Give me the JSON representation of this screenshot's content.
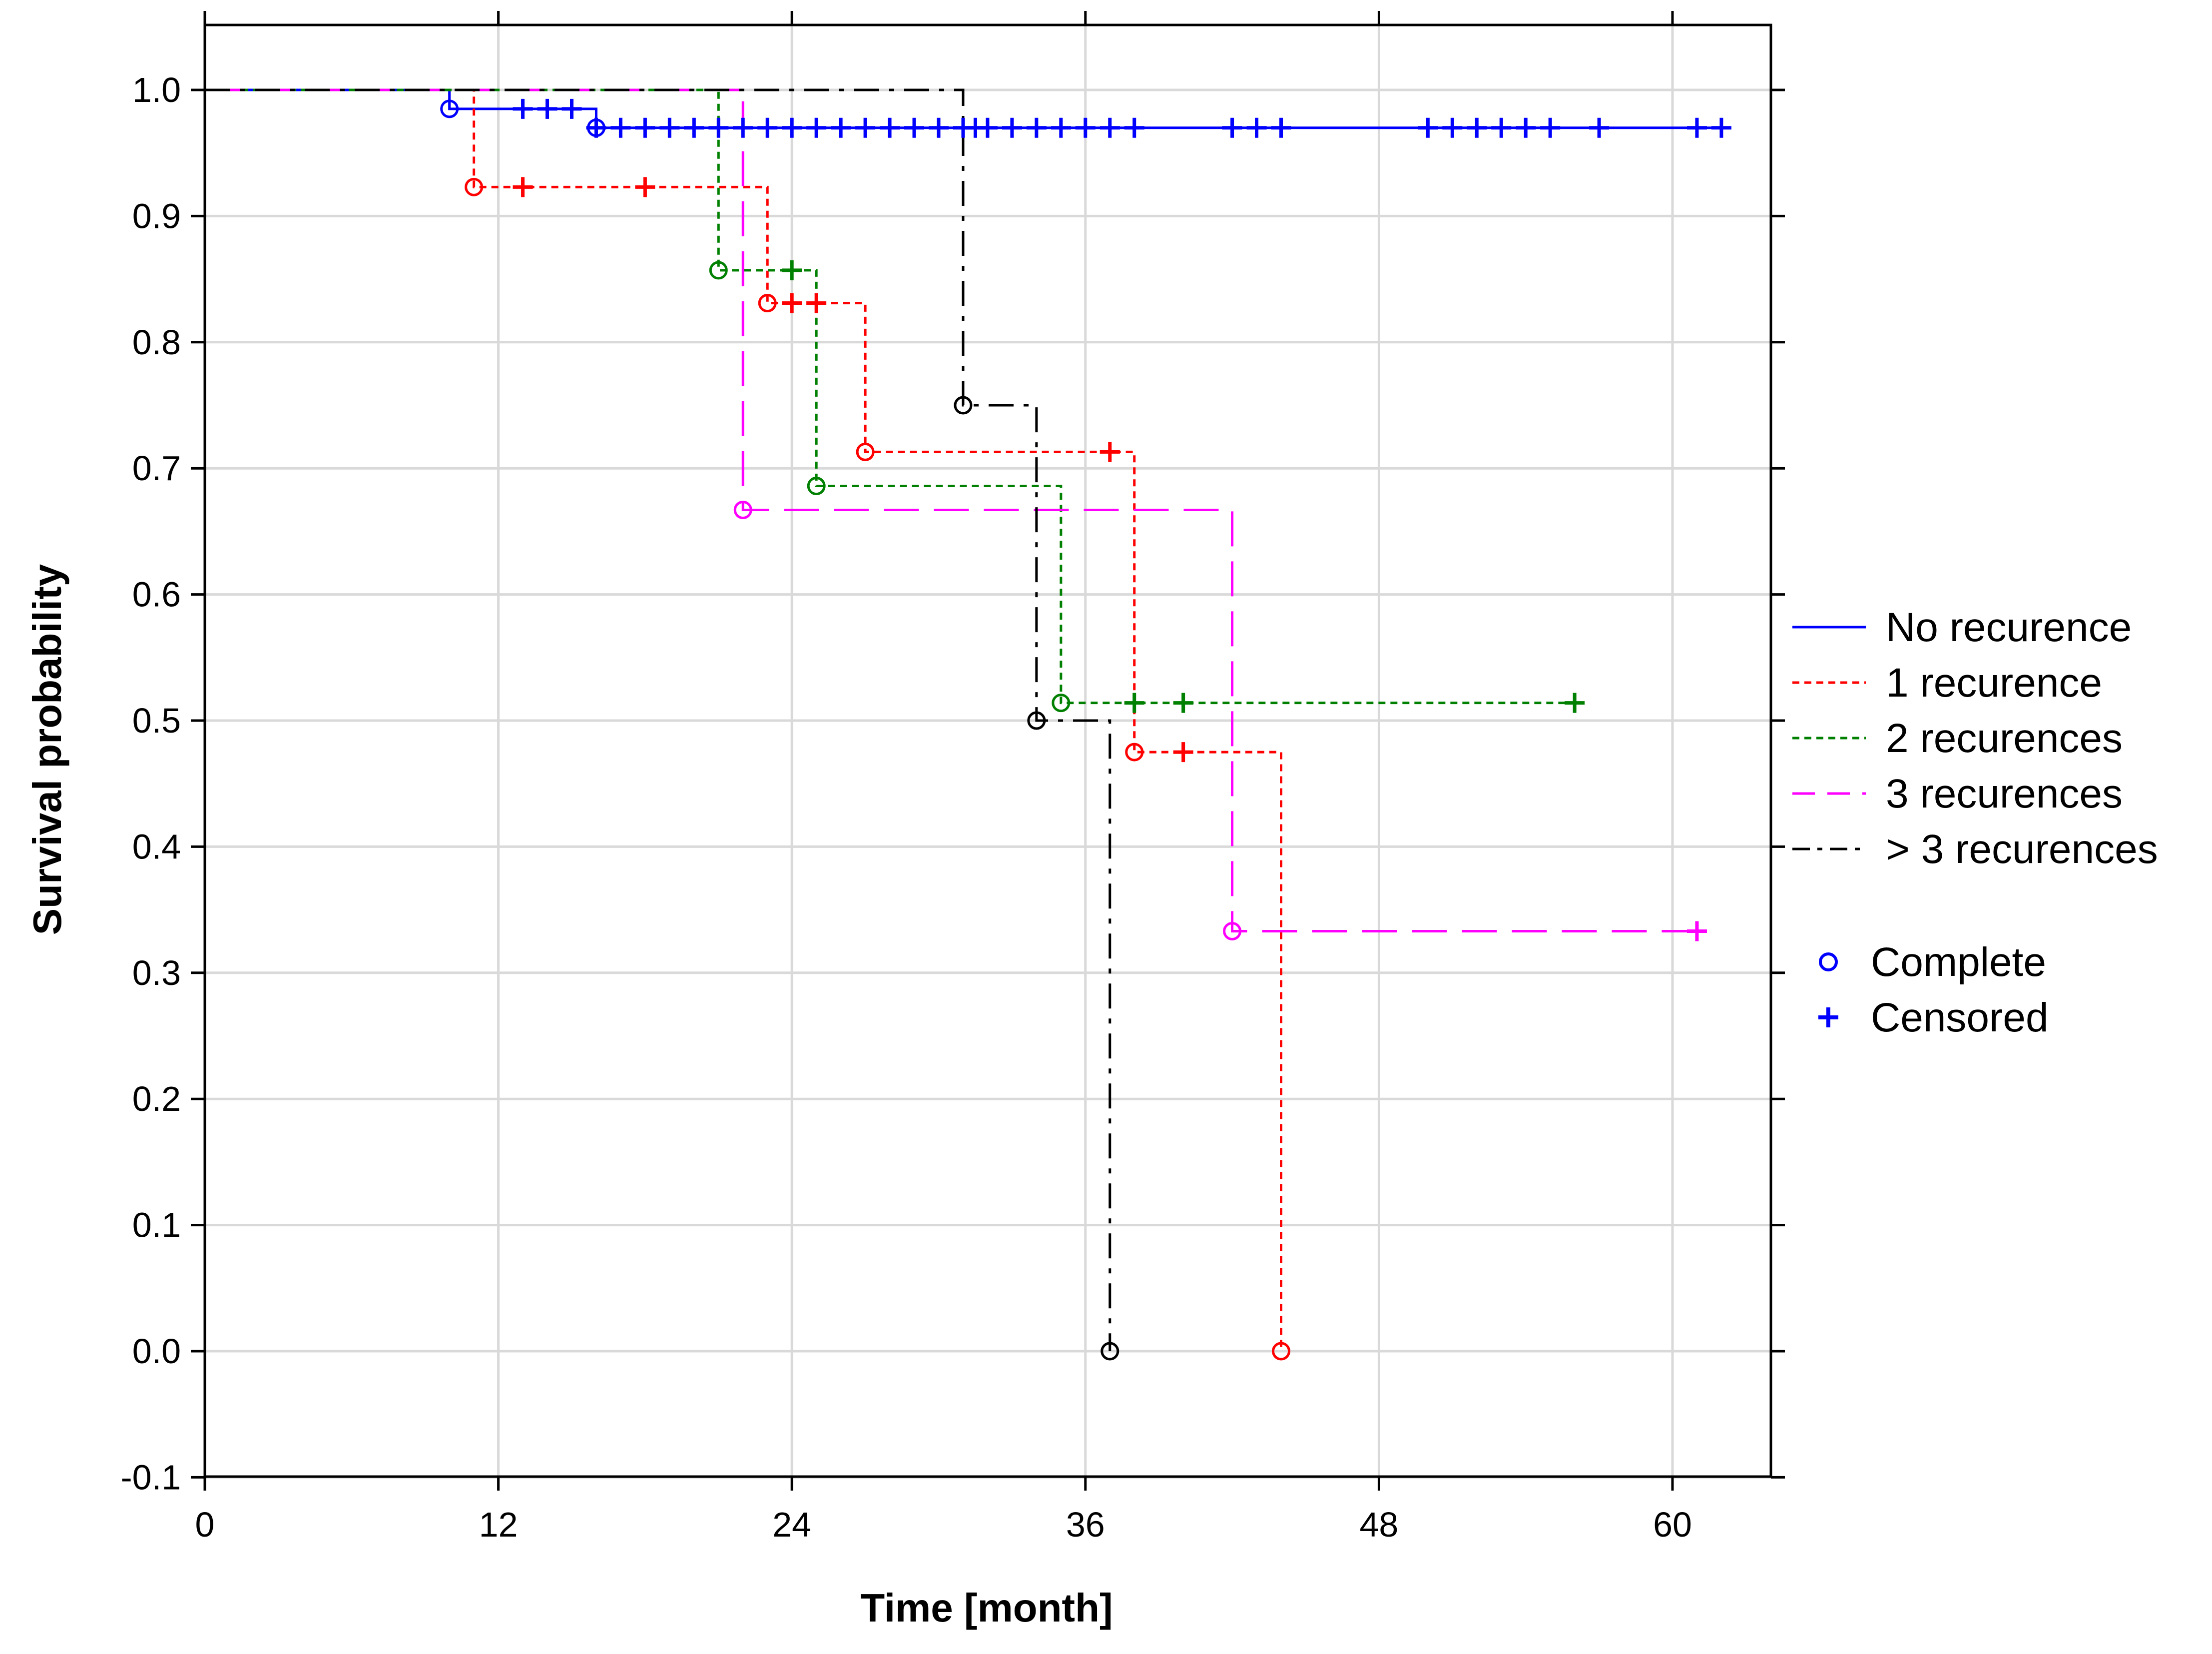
{
  "chart_data": {
    "type": "line",
    "subtype": "kaplan-meier-step",
    "title": "",
    "xlabel": "Time [month]",
    "ylabel": "Survival probability",
    "xlim": [
      0,
      64
    ],
    "ylim": [
      -0.1,
      1.05
    ],
    "xticks": [
      0,
      12,
      24,
      36,
      48,
      60
    ],
    "yticks": [
      -0.1,
      0.0,
      0.1,
      0.2,
      0.3,
      0.4,
      0.5,
      0.6,
      0.7,
      0.8,
      0.9,
      1.0
    ],
    "ytick_labels": [
      "-0.1",
      "0.0",
      "0.1",
      "0.2",
      "0.3",
      "0.4",
      "0.5",
      "0.6",
      "0.7",
      "0.8",
      "0.9",
      "1.0"
    ],
    "grid": true,
    "legend_position": "right",
    "series": [
      {
        "name": "No recurence",
        "color": "#0000ff",
        "style": "solid",
        "steps": [
          [
            0,
            1.0
          ],
          [
            10,
            0.985
          ],
          [
            16,
            0.97
          ],
          [
            62,
            0.97
          ]
        ],
        "complete": [
          [
            10,
            0.985
          ],
          [
            16,
            0.97
          ]
        ],
        "censored": [
          [
            13,
            0.985
          ],
          [
            14,
            0.985
          ],
          [
            15,
            0.985
          ],
          [
            16,
            0.97
          ],
          [
            17,
            0.97
          ],
          [
            18,
            0.97
          ],
          [
            19,
            0.97
          ],
          [
            20,
            0.97
          ],
          [
            21,
            0.97
          ],
          [
            22,
            0.97
          ],
          [
            23,
            0.97
          ],
          [
            24,
            0.97
          ],
          [
            25,
            0.97
          ],
          [
            26,
            0.97
          ],
          [
            27,
            0.97
          ],
          [
            28,
            0.97
          ],
          [
            29,
            0.97
          ],
          [
            30,
            0.97
          ],
          [
            31,
            0.97
          ],
          [
            31.5,
            0.97
          ],
          [
            32,
            0.97
          ],
          [
            33,
            0.97
          ],
          [
            34,
            0.97
          ],
          [
            35,
            0.97
          ],
          [
            36,
            0.97
          ],
          [
            37,
            0.97
          ],
          [
            38,
            0.97
          ],
          [
            42,
            0.97
          ],
          [
            43,
            0.97
          ],
          [
            44,
            0.97
          ],
          [
            50,
            0.97
          ],
          [
            51,
            0.97
          ],
          [
            52,
            0.97
          ],
          [
            53,
            0.97
          ],
          [
            54,
            0.97
          ],
          [
            55,
            0.97
          ],
          [
            57,
            0.97
          ],
          [
            61,
            0.97
          ],
          [
            62,
            0.97
          ]
        ]
      },
      {
        "name": "1 recurence",
        "color": "#ff0000",
        "style": "dotted",
        "steps": [
          [
            0,
            1.0
          ],
          [
            11,
            0.923
          ],
          [
            23,
            0.831
          ],
          [
            27,
            0.713
          ],
          [
            38,
            0.475
          ],
          [
            44,
            0.0
          ]
        ],
        "complete": [
          [
            11,
            0.923
          ],
          [
            23,
            0.831
          ],
          [
            27,
            0.713
          ],
          [
            38,
            0.475
          ],
          [
            44,
            0.0
          ]
        ],
        "censored": [
          [
            13,
            0.923
          ],
          [
            18,
            0.923
          ],
          [
            24,
            0.831
          ],
          [
            25,
            0.831
          ],
          [
            37,
            0.713
          ],
          [
            40,
            0.475
          ]
        ]
      },
      {
        "name": "2 recurences",
        "color": "#008000",
        "style": "dotted",
        "steps": [
          [
            0,
            1.0
          ],
          [
            21,
            0.857
          ],
          [
            25,
            0.686
          ],
          [
            35,
            0.514
          ],
          [
            56,
            0.514
          ]
        ],
        "complete": [
          [
            21,
            0.857
          ],
          [
            25,
            0.686
          ],
          [
            35,
            0.514
          ]
        ],
        "censored": [
          [
            24,
            0.857
          ],
          [
            38,
            0.514
          ],
          [
            40,
            0.514
          ],
          [
            56,
            0.514
          ]
        ]
      },
      {
        "name": "3 recurences",
        "color": "#ff00ff",
        "style": "dashed",
        "steps": [
          [
            0,
            1.0
          ],
          [
            22,
            0.667
          ],
          [
            42,
            0.333
          ],
          [
            61,
            0.333
          ]
        ],
        "complete": [
          [
            22,
            0.667
          ],
          [
            42,
            0.333
          ]
        ],
        "censored": [
          [
            61,
            0.333
          ]
        ]
      },
      {
        "name": "> 3 recurences",
        "color": "#000000",
        "style": "dashdot",
        "steps": [
          [
            0,
            1.0
          ],
          [
            31,
            0.75
          ],
          [
            34,
            0.5
          ],
          [
            37,
            0.0
          ]
        ],
        "complete": [
          [
            31,
            0.75
          ],
          [
            34,
            0.5
          ],
          [
            37,
            0.0
          ]
        ],
        "censored": []
      }
    ],
    "marker_legend": [
      {
        "label": "Complete",
        "symbol": "circle",
        "color": "#0000ff"
      },
      {
        "label": "Censored",
        "symbol": "plus",
        "color": "#0000ff"
      }
    ]
  }
}
